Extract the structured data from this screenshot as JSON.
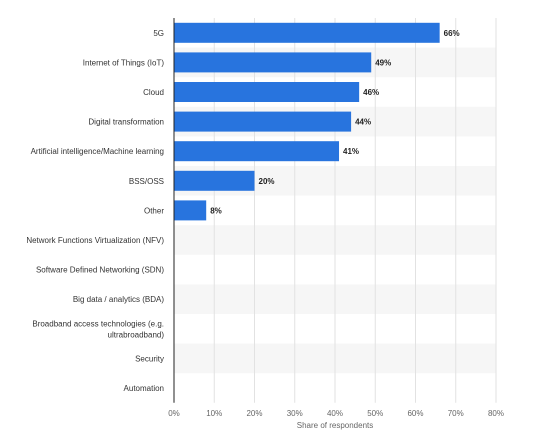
{
  "chart_data": {
    "type": "bar",
    "orientation": "horizontal",
    "categories": [
      "5G",
      "Internet of Things (IoT)",
      "Cloud",
      "Digital transformation",
      "Artificial intelligence/Machine learning",
      "BSS/OSS",
      "Other",
      "Network Functions Virtualization (NFV)",
      "Software Defined Networking (SDN)",
      "Big data / analytics (BDA)",
      "Broadband access technologies (e.g. ultrabroadband)",
      "Security",
      "Automation"
    ],
    "values": [
      66,
      49,
      46,
      44,
      41,
      20,
      8,
      null,
      null,
      null,
      null,
      null,
      null
    ],
    "value_labels": [
      "66%",
      "49%",
      "46%",
      "44%",
      "41%",
      "20%",
      "8%",
      "",
      "",
      "",
      "",
      "",
      ""
    ],
    "xlabel": "Share of respondents",
    "ylabel": "",
    "xlim": [
      0,
      80
    ],
    "ticks": [
      "0%",
      "10%",
      "20%",
      "30%",
      "40%",
      "50%",
      "60%",
      "70%",
      "80%"
    ],
    "grid": true,
    "bar_color": "#2874de",
    "stripe_color": "#f6f6f6"
  }
}
